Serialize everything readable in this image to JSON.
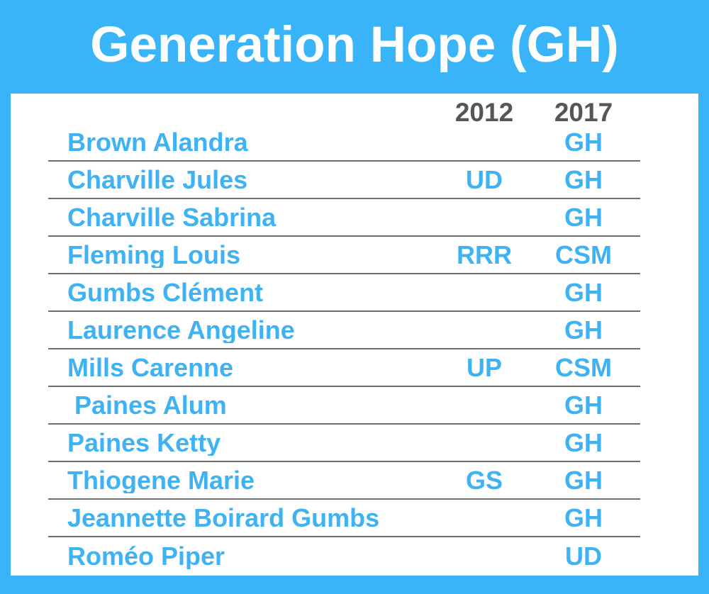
{
  "title": "Generation Hope (GH)",
  "colors": {
    "frame_blue": "#39b4f9",
    "text_blue": "#3eb2f2",
    "header_gray": "#565656",
    "panel_white": "#ffffff",
    "separator_gray": "#6e6e6e"
  },
  "chart_data": {
    "type": "table",
    "title": "Generation Hope (GH)",
    "columns": [
      "",
      "2012",
      "2017"
    ],
    "rows": [
      [
        "Brown Alandra",
        "",
        "GH"
      ],
      [
        "Charville Jules",
        "UD",
        "GH"
      ],
      [
        "Charville Sabrina",
        "",
        "GH"
      ],
      [
        "Fleming Louis",
        "RRR",
        "CSM"
      ],
      [
        "Gumbs Clément",
        "",
        "GH"
      ],
      [
        "Laurence Angeline",
        "",
        "GH"
      ],
      [
        "Mills Carenne",
        "UP",
        "CSM"
      ],
      [
        " Paines Alum",
        "",
        "GH"
      ],
      [
        "Paines Ketty",
        "",
        "GH"
      ],
      [
        "Thiogene Marie",
        "GS",
        "GH"
      ],
      [
        "Jeannette Boirard Gumbs",
        "",
        "GH"
      ],
      [
        "Roméo Piper",
        "",
        "UD"
      ]
    ]
  }
}
